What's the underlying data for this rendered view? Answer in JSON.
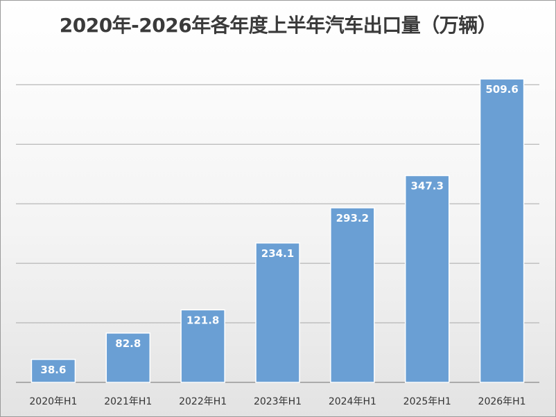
{
  "chart_data": {
    "type": "bar",
    "title": "2020年-2026年各年度上半年汽车出口量（万辆）",
    "categories": [
      "2020年H1",
      "2021年H1",
      "2022年H1",
      "2023年H1",
      "2024年H1",
      "2025年H1",
      "2026年H1"
    ],
    "values": [
      38.6,
      82.8,
      121.8,
      234.1,
      293.2,
      347.3,
      509.6
    ],
    "data_labels": [
      "38.6",
      "82.8",
      "121.8",
      "234.1",
      "293.2",
      "347.3",
      "509.6"
    ],
    "ylim": [
      0,
      500
    ],
    "grid": true,
    "legend": "none",
    "colors": {
      "bar": "#6a9fd4",
      "bar_edge": "#ffffff",
      "grid": "#a8a8a8",
      "axis": "#888888"
    }
  }
}
